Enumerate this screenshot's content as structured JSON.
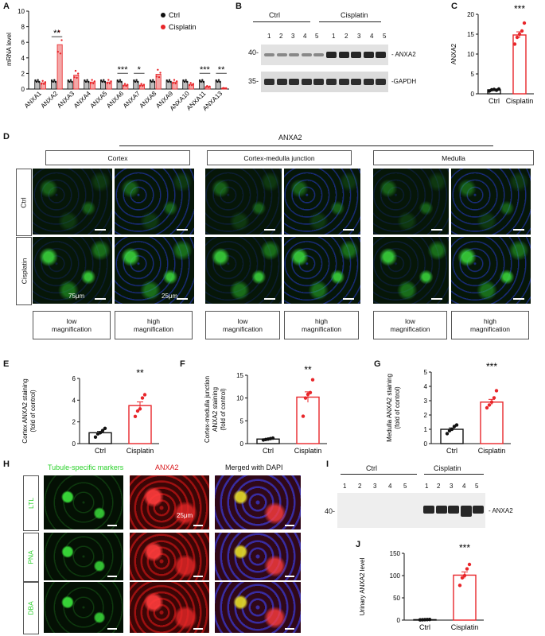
{
  "panels": {
    "A": "A",
    "B": "B",
    "C": "C",
    "D": "D",
    "E": "E",
    "F": "F",
    "G": "G",
    "H": "H",
    "I": "I",
    "J": "J"
  },
  "colors": {
    "ctrl": "#111111",
    "cisplatin": "#e8262a",
    "ctrl_bar_fill": "#bdbdbd",
    "cisplatin_bar_fill": "#f4a7a7",
    "tissue_green": "#2bd12b",
    "dapi_blue": "#2233cc",
    "anxa2_red": "#d8181c"
  },
  "legend_A": {
    "ctrl": "Ctrl",
    "cisplatin": "Cisplatin"
  },
  "panel_B": {
    "groups": [
      "Ctrl",
      "Cisplatin"
    ],
    "lanes": [
      "1",
      "2",
      "3",
      "4",
      "5",
      "1",
      "2",
      "3",
      "4",
      "5"
    ],
    "markers": [
      "40-",
      "35-"
    ],
    "bands": [
      "- ANXA2",
      "-GAPDH"
    ]
  },
  "panel_D": {
    "title": "ANXA2",
    "regions": [
      "Cortex",
      "Cortex-medulla junction",
      "Medulla"
    ],
    "rows": [
      "Ctrl",
      "Cisplatin"
    ],
    "scale_low": "75μm",
    "scale_high": "25μm",
    "mags": [
      "low\nmagnification",
      "high\nmagnification",
      "low\nmagnification",
      "high\nmagnification",
      "low\nmagnification",
      "high\nmagnification"
    ]
  },
  "panel_H": {
    "cols": [
      "Tubule-specific markers",
      "ANXA2",
      "Merged with DAPI"
    ],
    "rows": [
      "LTL",
      "PNA",
      "DBA"
    ],
    "scale": "25μm"
  },
  "panel_I": {
    "groups": [
      "Ctrl",
      "Cisplatin"
    ],
    "lanes": [
      "1",
      "2",
      "3",
      "4",
      "5",
      "1",
      "2",
      "3",
      "4",
      "5"
    ],
    "marker": "40-",
    "band": "- ANXA2"
  },
  "chart_data": [
    {
      "panel": "A",
      "type": "bar",
      "ylabel": "mRNA level",
      "ylim": [
        0,
        10
      ],
      "yticks": [
        "0",
        "2",
        "4",
        "6",
        "8",
        "10"
      ],
      "categories": [
        "ANXA1",
        "ANXA2",
        "ANXA3",
        "ANXA4",
        "ANXA5",
        "ANXA6",
        "ANXA7",
        "ANXA8",
        "ANXA9",
        "ANXA10",
        "ANXA11",
        "ANXA13"
      ],
      "series": [
        {
          "name": "Ctrl",
          "values": [
            1.0,
            1.0,
            1.0,
            1.0,
            1.0,
            1.0,
            1.0,
            1.0,
            1.0,
            1.0,
            1.0,
            1.0
          ]
        },
        {
          "name": "Cisplatin",
          "values": [
            0.8,
            5.7,
            1.8,
            0.9,
            0.9,
            0.5,
            0.5,
            1.9,
            0.9,
            0.6,
            0.3,
            0.1
          ]
        }
      ],
      "significance": [
        {
          "category": "ANXA2",
          "label": "**"
        },
        {
          "category": "ANXA6",
          "label": "***"
        },
        {
          "category": "ANXA7",
          "label": "*"
        },
        {
          "category": "ANXA11",
          "label": "***"
        },
        {
          "category": "ANXA13",
          "label": "**"
        }
      ]
    },
    {
      "panel": "C",
      "type": "bar",
      "ylabel": "ANXA2",
      "ylim": [
        0,
        20
      ],
      "yticks": [
        "0",
        "5",
        "10",
        "15",
        "20"
      ],
      "categories": [
        "Ctrl",
        "Cisplatin"
      ],
      "values": [
        1.0,
        14.8
      ],
      "points": [
        [
          0.7,
          1.0,
          1.1,
          0.9,
          1.2
        ],
        [
          12.5,
          14.2,
          15.0,
          15.8,
          17.8
        ]
      ],
      "significance": "***"
    },
    {
      "panel": "E",
      "type": "bar",
      "ylabel": "Cortex ANXA2 staining\n(fold of control)",
      "ylim": [
        0,
        6
      ],
      "yticks": [
        "0",
        "2",
        "4",
        "6"
      ],
      "categories": [
        "Ctrl",
        "Cisplatin"
      ],
      "values": [
        1.0,
        3.5
      ],
      "points": [
        [
          0.6,
          0.9,
          1.0,
          1.2,
          1.4
        ],
        [
          2.5,
          3.0,
          3.2,
          4.2,
          4.5
        ]
      ],
      "significance": "**"
    },
    {
      "panel": "F",
      "type": "bar",
      "ylabel": "Cortex-medulla junction\nANXA2 staining\n(fold of control)",
      "ylim": [
        0,
        15
      ],
      "yticks": [
        "0",
        "5",
        "10",
        "15"
      ],
      "categories": [
        "Ctrl",
        "Cisplatin"
      ],
      "values": [
        1.0,
        10.2
      ],
      "points": [
        [
          0.8,
          0.9,
          1.0,
          1.1,
          1.2
        ],
        [
          6.0,
          10.0,
          10.8,
          11.2,
          14.0
        ]
      ],
      "significance": "**"
    },
    {
      "panel": "G",
      "type": "bar",
      "ylabel": "Medulla ANXA2 staining\n(fold of control)",
      "ylim": [
        0,
        5
      ],
      "yticks": [
        "0",
        "1",
        "2",
        "3",
        "4",
        "5"
      ],
      "categories": [
        "Ctrl",
        "Cisplatin"
      ],
      "values": [
        1.0,
        2.9
      ],
      "points": [
        [
          0.7,
          0.9,
          1.0,
          1.2,
          1.3
        ],
        [
          2.5,
          2.7,
          2.9,
          3.2,
          3.7
        ]
      ],
      "significance": "***"
    },
    {
      "panel": "J",
      "type": "bar",
      "ylabel": "Urinary ANXA2 level",
      "ylim": [
        0,
        150
      ],
      "yticks": [
        "0",
        "50",
        "100",
        "150"
      ],
      "categories": [
        "Ctrl",
        "Cisplatin"
      ],
      "values": [
        1.0,
        101
      ],
      "points": [
        [
          0.5,
          0.8,
          1.0,
          1.2,
          1.5
        ],
        [
          78,
          95,
          100,
          115,
          125
        ]
      ],
      "significance": "***"
    }
  ]
}
